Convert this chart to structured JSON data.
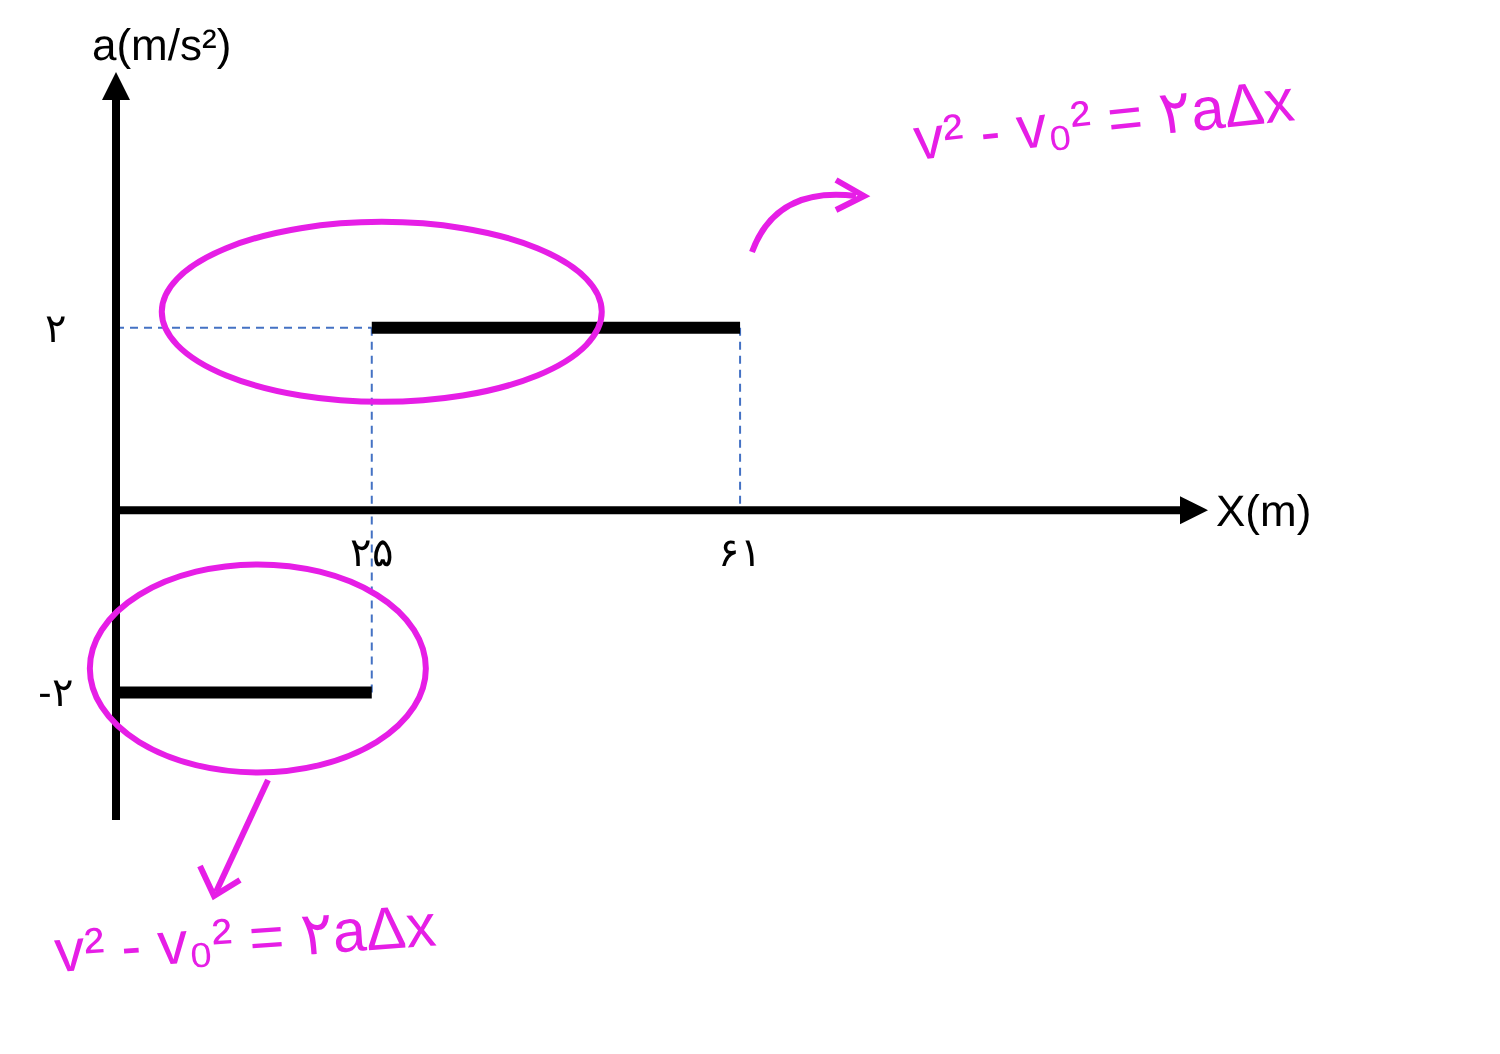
{
  "chart_data": {
    "type": "line",
    "xlabel": "X(m)",
    "ylabel": "a(m/s²)",
    "xlim": [
      0,
      104
    ],
    "ylim": [
      -3.4,
      4.5
    ],
    "xticks": [
      {
        "value": 25,
        "label": "۲۵"
      },
      {
        "value": 61,
        "label": "۶۱"
      }
    ],
    "yticks": [
      {
        "value": -2,
        "label": "-۲"
      },
      {
        "value": 2,
        "label": "۲"
      }
    ],
    "series": [
      {
        "color": "#000000",
        "x": [
          0,
          25
        ],
        "values": [
          -2,
          -2
        ]
      },
      {
        "color": "#000000",
        "x": [
          25,
          61
        ],
        "values": [
          2,
          2
        ]
      }
    ],
    "annotations": [
      "v² - v₀² = ۲aΔx",
      "v² - v₀² = ۲aΔx"
    ]
  }
}
